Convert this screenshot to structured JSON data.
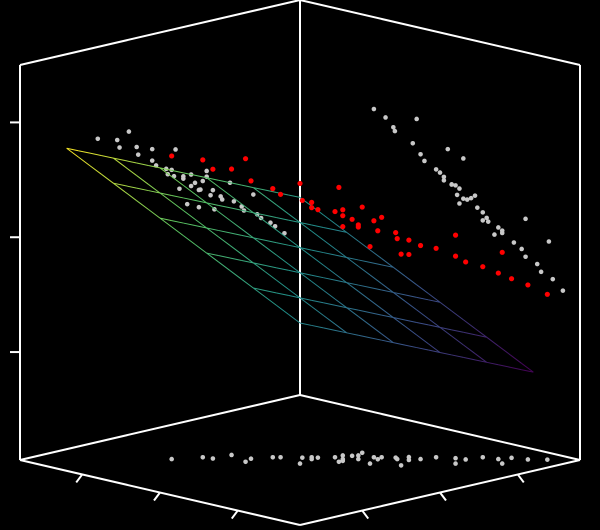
{
  "chart_data": {
    "type": "scatter3d",
    "x": [
      0.8,
      0.55,
      0.52,
      0.3,
      0.28,
      0.1,
      0.05,
      -0.08,
      -0.15,
      -0.18,
      -0.3,
      -0.3,
      -0.45,
      -0.4,
      -0.55,
      -0.52,
      -0.68,
      -0.65,
      -0.78,
      -0.8,
      -0.95,
      -1.05,
      -1.08,
      -1.25,
      -1.3,
      -1.42,
      -1.48,
      -1.6,
      0.4,
      -0.2,
      -0.6,
      -0.9,
      -0.5,
      0.1,
      -1.2,
      -0.35,
      -0.4,
      -0.25,
      -0.6,
      -0.7,
      -0.1,
      -0.5
    ],
    "y": [
      -0.85,
      -0.7,
      -0.6,
      -0.58,
      -0.35,
      -0.25,
      -0.2,
      -0.05,
      0.0,
      0.05,
      0.15,
      0.25,
      0.22,
      0.35,
      0.4,
      0.48,
      0.55,
      0.6,
      0.62,
      0.75,
      0.8,
      0.95,
      1.05,
      1.1,
      1.25,
      1.3,
      1.45,
      1.58,
      -0.3,
      0.3,
      0.2,
      1.1,
      0.8,
      0.1,
      1.4,
      0.55,
      0.15,
      0.3,
      0.45,
      0.7,
      0.05,
      0.25
    ],
    "z": [
      0.7,
      0.65,
      0.58,
      0.55,
      0.48,
      0.4,
      0.35,
      0.3,
      0.28,
      0.22,
      0.2,
      0.18,
      0.12,
      0.1,
      0.12,
      0.05,
      0.02,
      -0.02,
      -0.05,
      -0.08,
      -0.12,
      -0.18,
      -0.22,
      -0.28,
      -0.32,
      -0.38,
      -0.42,
      -0.5,
      0.7,
      0.45,
      0.2,
      0.05,
      -0.1,
      0.5,
      -0.1,
      -0.05,
      0.2,
      0.1,
      0.15,
      -0.15,
      0.25,
      0.05
    ],
    "color": "#ff0000",
    "shadow_color": "#c8c8c8",
    "surface": {
      "x": [
        -1.5,
        -0.9,
        -0.3,
        0.3,
        0.9,
        1.5
      ],
      "y": [
        -1.5,
        -0.9,
        -0.3,
        0.3,
        0.9,
        1.5
      ],
      "z": [
        [
          -0.125,
          -0.335,
          -0.545,
          -0.755,
          -0.965,
          -1.175
        ],
        [
          0.055,
          -0.155,
          -0.365,
          -0.575,
          -0.785,
          -0.995
        ],
        [
          0.235,
          0.025,
          -0.185,
          -0.395,
          -0.605,
          -0.815
        ],
        [
          0.415,
          0.205,
          -0.005,
          -0.215,
          -0.425,
          -0.635
        ],
        [
          0.595,
          0.385,
          0.175,
          -0.035,
          -0.245,
          -0.455
        ],
        [
          0.775,
          0.565,
          0.355,
          0.145,
          -0.065,
          -0.275
        ]
      ],
      "colormap": "viridis"
    },
    "xlim": [
      -1.8,
      1.8
    ],
    "ylim": [
      -1.8,
      1.8
    ],
    "zlim": [
      -1.94,
      1.5
    ],
    "xticks": [
      -1,
      0,
      1
    ],
    "yticks": [
      -1,
      0,
      1
    ],
    "zticks": [
      -1,
      0,
      1
    ]
  }
}
